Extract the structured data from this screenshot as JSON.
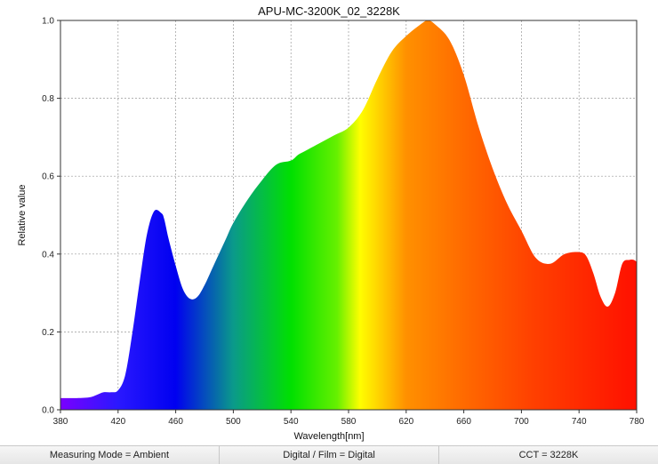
{
  "chart_data": {
    "type": "area",
    "title": "APU-MC-3200K_02_3228K",
    "xlabel": "Wavelength[nm]",
    "ylabel": "Relative value",
    "xlim": [
      380,
      780
    ],
    "ylim": [
      0,
      1.0
    ],
    "xticks": [
      380,
      420,
      460,
      500,
      540,
      580,
      620,
      660,
      700,
      740,
      780
    ],
    "yticks": [
      0.0,
      0.2,
      0.4,
      0.6,
      0.8,
      1.0
    ],
    "ytick_labels": [
      "0.0",
      "0.2",
      "0.4",
      "0.6",
      "0.8",
      "1.0"
    ],
    "grid": true,
    "fill": "spectral-gradient",
    "series": [
      {
        "x": [
          380,
          390,
          400,
          405,
          410,
          415,
          420,
          425,
          430,
          435,
          440,
          445,
          450,
          452,
          455,
          460,
          465,
          470,
          475,
          480,
          485,
          490,
          495,
          500,
          510,
          520,
          530,
          540,
          545,
          550,
          560,
          570,
          580,
          590,
          600,
          610,
          620,
          630,
          635,
          640,
          650,
          660,
          670,
          680,
          690,
          700,
          710,
          720,
          730,
          740,
          745,
          750,
          755,
          760,
          765,
          770,
          775,
          778,
          780
        ],
        "y": [
          0.03,
          0.03,
          0.032,
          0.038,
          0.045,
          0.045,
          0.05,
          0.09,
          0.2,
          0.33,
          0.45,
          0.51,
          0.505,
          0.49,
          0.44,
          0.37,
          0.31,
          0.285,
          0.29,
          0.32,
          0.36,
          0.4,
          0.44,
          0.48,
          0.54,
          0.59,
          0.63,
          0.64,
          0.655,
          0.665,
          0.685,
          0.705,
          0.725,
          0.77,
          0.85,
          0.92,
          0.96,
          0.99,
          1.0,
          0.99,
          0.95,
          0.86,
          0.73,
          0.62,
          0.53,
          0.46,
          0.39,
          0.375,
          0.4,
          0.405,
          0.395,
          0.35,
          0.29,
          0.265,
          0.3,
          0.375,
          0.385,
          0.385,
          0.38
        ]
      }
    ]
  },
  "status": {
    "measuring_mode": "Measuring Mode = Ambient",
    "digital_film": "Digital / Film = Digital",
    "cct": "CCT = 3228K"
  }
}
